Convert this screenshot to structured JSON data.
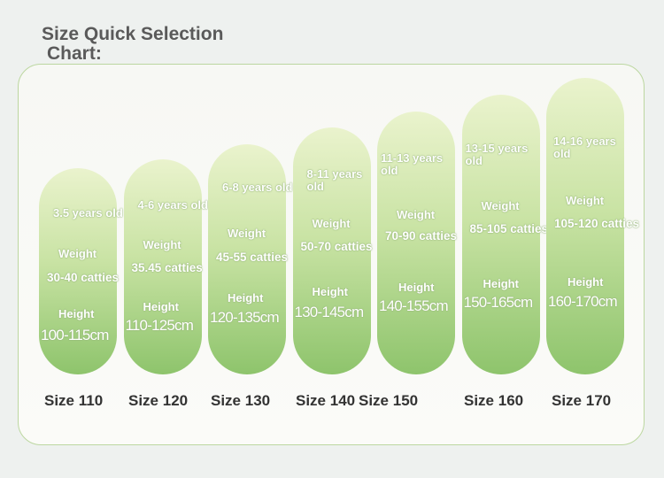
{
  "header": {
    "title": "Size Quick Selection",
    "title_line2": "Chart:"
  },
  "sizes": [
    {
      "age": "3.5 years old",
      "weight_label": "Weight",
      "weight": "30-40 catties",
      "height_label": "Height",
      "height": "100-115cm",
      "size": "Size 110"
    },
    {
      "age": "4-6 years old",
      "weight_label": "Weight",
      "weight": "35.45 catties",
      "height_label": "Height",
      "height": "110-125cm",
      "size": "Size 120"
    },
    {
      "age": "6-8 years old",
      "weight_label": "Weight",
      "weight": "45-55 catties",
      "height_label": "Height",
      "height": "120-135cm",
      "size": "Size 130"
    },
    {
      "age": "8-11 years old",
      "weight_label": "Weight",
      "weight": "50-70 catties",
      "height_label": "Height",
      "height": "130-145cm",
      "size": "Size 140"
    },
    {
      "age": "11-13 years old",
      "weight_label": "Weight",
      "weight": "70-90 catties",
      "height_label": "Height",
      "height": "140-155cm",
      "size": "Size 150"
    },
    {
      "age": "13-15 years old",
      "weight_label": "Weight",
      "weight": "85-105 catties",
      "height_label": "Height",
      "height": "150-165cm",
      "size": "Size 160"
    },
    {
      "age": "14-16 years old",
      "weight_label": "Weight",
      "weight": "105-120 catties",
      "height_label": "Height",
      "height": "160-170cm",
      "size": "Size 170"
    }
  ]
}
